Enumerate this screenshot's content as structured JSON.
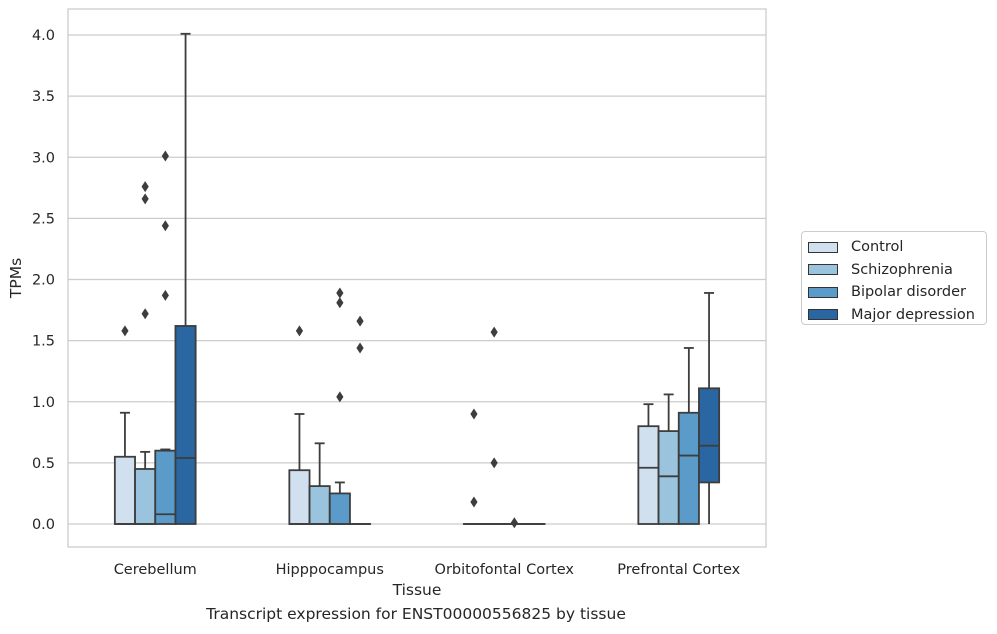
{
  "chart_data": {
    "type": "box",
    "xlabel": "Tissue",
    "ylabel": "TPMs",
    "ylim": [
      -0.2,
      4.22
    ],
    "yticks": [
      "0.0",
      "0.5",
      "1.0",
      "1.5",
      "2.0",
      "2.5",
      "3.0",
      "3.5",
      "4.0"
    ],
    "grid": "horizontal",
    "legend_position": "right",
    "categories": [
      "Cerebellum",
      "Hipppocampus",
      "Orbitofontal Cortex",
      "Prefrontal Cortex"
    ],
    "series": [
      {
        "name": "Control",
        "color": "#d0e0ef",
        "boxes": [
          {
            "min": 0.0,
            "q1": 0.0,
            "median": 0.0,
            "q3": 0.55,
            "max": 0.91,
            "outliers": [
              1.58
            ]
          },
          {
            "min": 0.0,
            "q1": 0.0,
            "median": 0.0,
            "q3": 0.44,
            "max": 0.9,
            "outliers": [
              1.58
            ]
          },
          {
            "min": 0.0,
            "q1": 0.0,
            "median": 0.0,
            "q3": 0.0,
            "max": 0.0,
            "outliers": [
              0.18,
              0.9
            ]
          },
          {
            "min": 0.0,
            "q1": 0.0,
            "median": 0.46,
            "q3": 0.8,
            "max": 0.98,
            "outliers": []
          }
        ]
      },
      {
        "name": "Schizophrenia",
        "color": "#9ac3dd",
        "boxes": [
          {
            "min": 0.0,
            "q1": 0.0,
            "median": 0.0,
            "q3": 0.45,
            "max": 0.59,
            "outliers": [
              1.72,
              2.66,
              2.76
            ]
          },
          {
            "min": 0.0,
            "q1": 0.0,
            "median": 0.0,
            "q3": 0.31,
            "max": 0.66,
            "outliers": []
          },
          {
            "min": 0.0,
            "q1": 0.0,
            "median": 0.0,
            "q3": 0.0,
            "max": 0.0,
            "outliers": [
              0.5,
              1.57
            ]
          },
          {
            "min": 0.0,
            "q1": 0.0,
            "median": 0.39,
            "q3": 0.76,
            "max": 1.06,
            "outliers": []
          }
        ]
      },
      {
        "name": "Bipolar disorder",
        "color": "#5a9bc9",
        "boxes": [
          {
            "min": 0.0,
            "q1": 0.0,
            "median": 0.08,
            "q3": 0.6,
            "max": 0.61,
            "outliers": [
              1.87,
              2.44,
              3.01
            ]
          },
          {
            "min": 0.0,
            "q1": 0.0,
            "median": 0.0,
            "q3": 0.25,
            "max": 0.34,
            "outliers": [
              1.04,
              1.81,
              1.89
            ]
          },
          {
            "min": 0.0,
            "q1": 0.0,
            "median": 0.0,
            "q3": 0.0,
            "max": 0.0,
            "outliers": [
              0.01
            ]
          },
          {
            "min": 0.0,
            "q1": 0.0,
            "median": 0.56,
            "q3": 0.91,
            "max": 1.44,
            "outliers": []
          }
        ]
      },
      {
        "name": "Major depression",
        "color": "#2a66a1",
        "boxes": [
          {
            "min": 0.0,
            "q1": 0.0,
            "median": 0.54,
            "q3": 1.62,
            "max": 4.01,
            "outliers": []
          },
          {
            "min": 0.0,
            "q1": 0.0,
            "median": 0.0,
            "q3": 0.0,
            "max": 0.0,
            "outliers": [
              1.44,
              1.66
            ]
          },
          {
            "min": 0.0,
            "q1": 0.0,
            "median": 0.0,
            "q3": 0.0,
            "max": 0.0,
            "outliers": []
          },
          {
            "min": 0.0,
            "q1": 0.34,
            "median": 0.64,
            "q3": 1.11,
            "max": 1.89,
            "outliers": []
          }
        ]
      }
    ]
  },
  "caption": "Transcript expression for ENST00000556825 by tissue"
}
